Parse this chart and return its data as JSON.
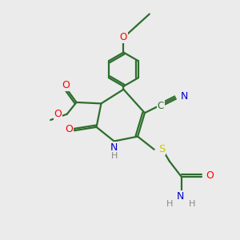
{
  "bg_color": "#ebebeb",
  "bond_color": "#2d6e2d",
  "bond_width": 1.6,
  "atom_colors": {
    "O": "#ff0000",
    "N": "#0000cc",
    "S": "#cccc00",
    "C": "#2d6e2d",
    "H": "#888888"
  },
  "figsize": [
    3.0,
    3.0
  ],
  "dpi": 100
}
